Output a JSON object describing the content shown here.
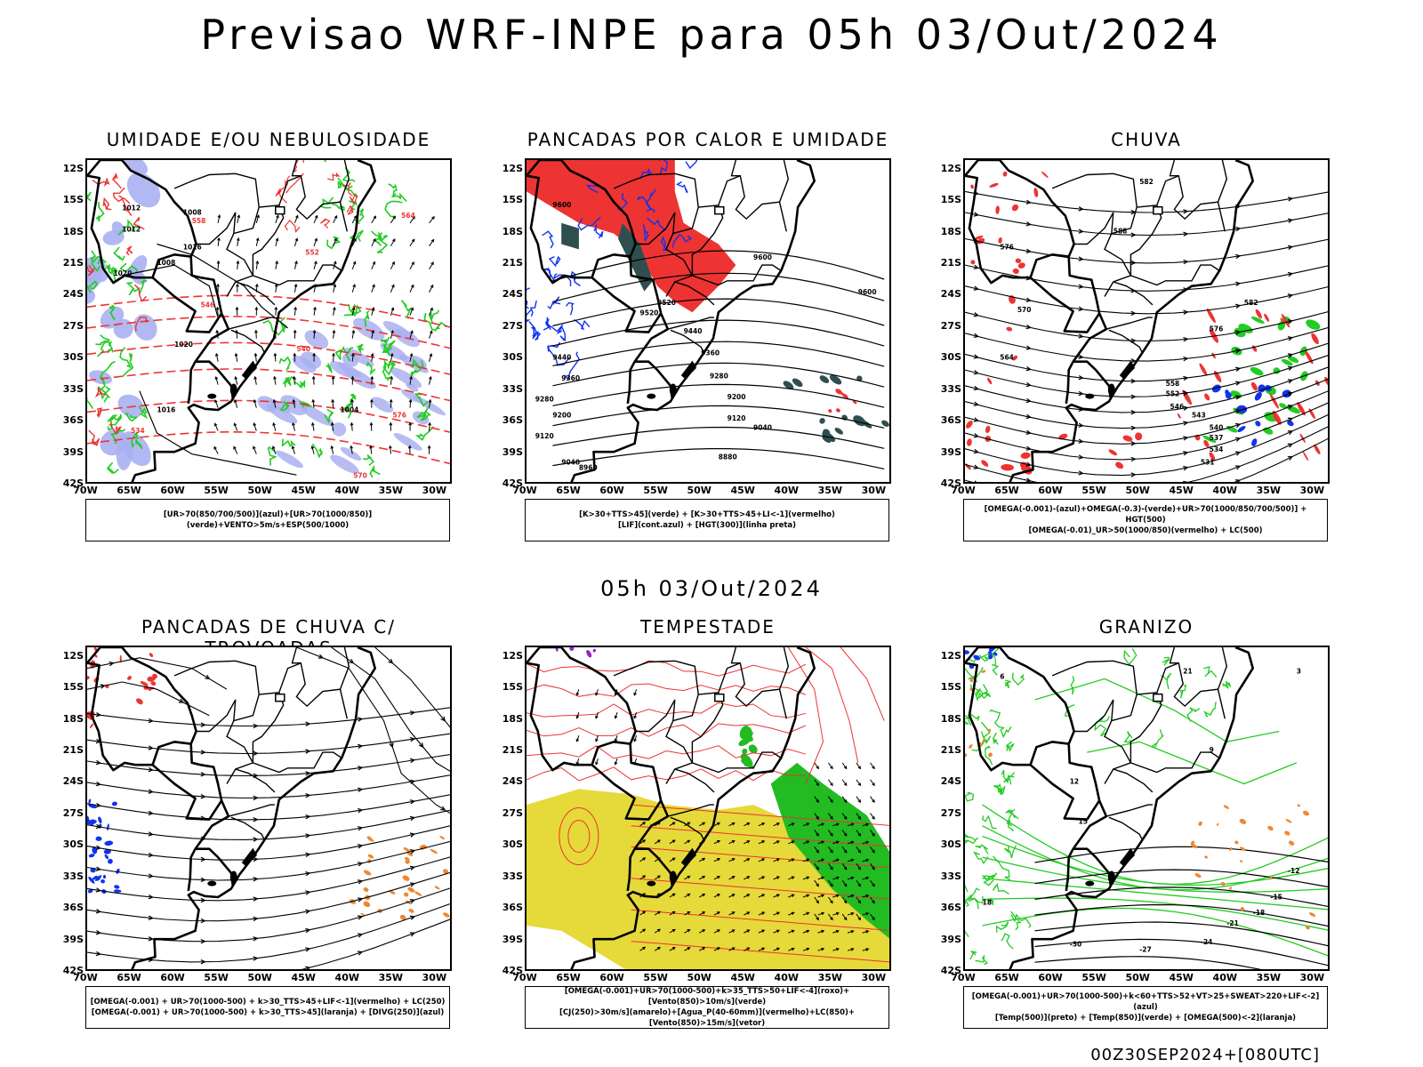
{
  "main_title": "Previsao WRF-INPE  para 05h 03/Out/2024",
  "mid_title": "05h 03/Out/2024",
  "footer": "00Z30SEP2024+[080UTC]",
  "axes": {
    "lat_labels": [
      "12S",
      "15S",
      "18S",
      "21S",
      "24S",
      "27S",
      "30S",
      "33S",
      "36S",
      "39S",
      "42S"
    ],
    "lon_labels": [
      "70W",
      "65W",
      "60W",
      "55W",
      "50W",
      "45W",
      "40W",
      "35W",
      "30W"
    ]
  },
  "panels": [
    {
      "id": "umidade",
      "title": "UMIDADE E/OU NEBULOSIDADE",
      "legend": [
        "[UR>70(850/700/500)](azul)+[UR>70(1000/850)](verde)+VENTO>5m/s+ESP(500/1000)"
      ],
      "contour_labels": [
        "1012",
        "1008",
        "1020",
        "1016",
        "1012",
        "1008",
        "1020",
        "1016",
        "1004",
        "576",
        "570",
        "564",
        "558",
        "552",
        "546",
        "540",
        "534"
      ]
    },
    {
      "id": "pancadas-calor",
      "title": "PANCADAS POR CALOR E UMIDADE",
      "legend": [
        "[K>30+TTS>45](verde) + [K>30+TTS>45+LI<-1](vermelho)",
        "[LIF](cont.azul) + [HGT(300)](linha preta)"
      ],
      "contour_labels": [
        "9600",
        "9520",
        "9600",
        "9600",
        "9440",
        "9360",
        "9280",
        "9200",
        "9120",
        "9040",
        "8960",
        "8880",
        "9520",
        "9440",
        "9360",
        "9280",
        "9200",
        "9120",
        "9040"
      ]
    },
    {
      "id": "chuva",
      "title": "CHUVA",
      "legend": [
        "[OMEGA(-0.001)-(azul)+OMEGA(-0.3)-(verde)+UR>70(1000/850/700/500)] + HGT(500)",
        "[OMEGA(-0.01)_UR>50(1000/850)(vermelho) + LC(500)"
      ],
      "contour_labels": [
        "582",
        "588",
        "576",
        "570",
        "564",
        "558",
        "552",
        "546",
        "543",
        "540",
        "537",
        "534",
        "531",
        "582",
        "576"
      ]
    },
    {
      "id": "pancadas-trovoadas",
      "title": "PANCADAS DE CHUVA C/ TROVOADAS",
      "legend": [
        "[OMEGA(-0.001) + UR>70(1000-500) + k>30_TTS>45+LIF<-1](vermelho) + LC(250)",
        "[OMEGA(-0.001) + UR>70(1000-500) + k>30_TTS>45](laranja) + [DIVG(250)](azul)"
      ]
    },
    {
      "id": "tempestade",
      "title": "TEMPESTADE",
      "legend": [
        "[OMEGA(-0.001)+UR>70(1000-500)+k>35_TTS>50+LIF<-4](roxo)+[Vento(850)>10m/s](verde)",
        "[CJ(250)>30m/s](amarelo)+[Agua_P(40-60mm)](vermelho)+LC(850)+[Vento(850)>15m/s](vetor)"
      ]
    },
    {
      "id": "granizo",
      "title": "GRANIZO",
      "legend": [
        "[OMEGA(-0.001)+UR>70(1000-500)+k<60+TTS>52+VT>25+SWEAT>220+LIF<-2](azul)",
        "[Temp(500)](preto) + [Temp(850)](verde) + [OMEGA(500)<-2](laranja)"
      ],
      "contour_labels": [
        "-12",
        "-15",
        "-18",
        "-21",
        "-24",
        "-27",
        "-30",
        "18",
        "15",
        "12",
        "9",
        "6",
        "3",
        "21"
      ]
    }
  ],
  "colors": {
    "humid_blue": "#aab0f0",
    "humid_green": "#22cc22",
    "red": "#ee3333",
    "dark_teal": "#2f4f4f",
    "yellow": "#e6d93a",
    "orange": "#ee8833",
    "purple": "#9922cc",
    "blue": "#1133ee"
  }
}
